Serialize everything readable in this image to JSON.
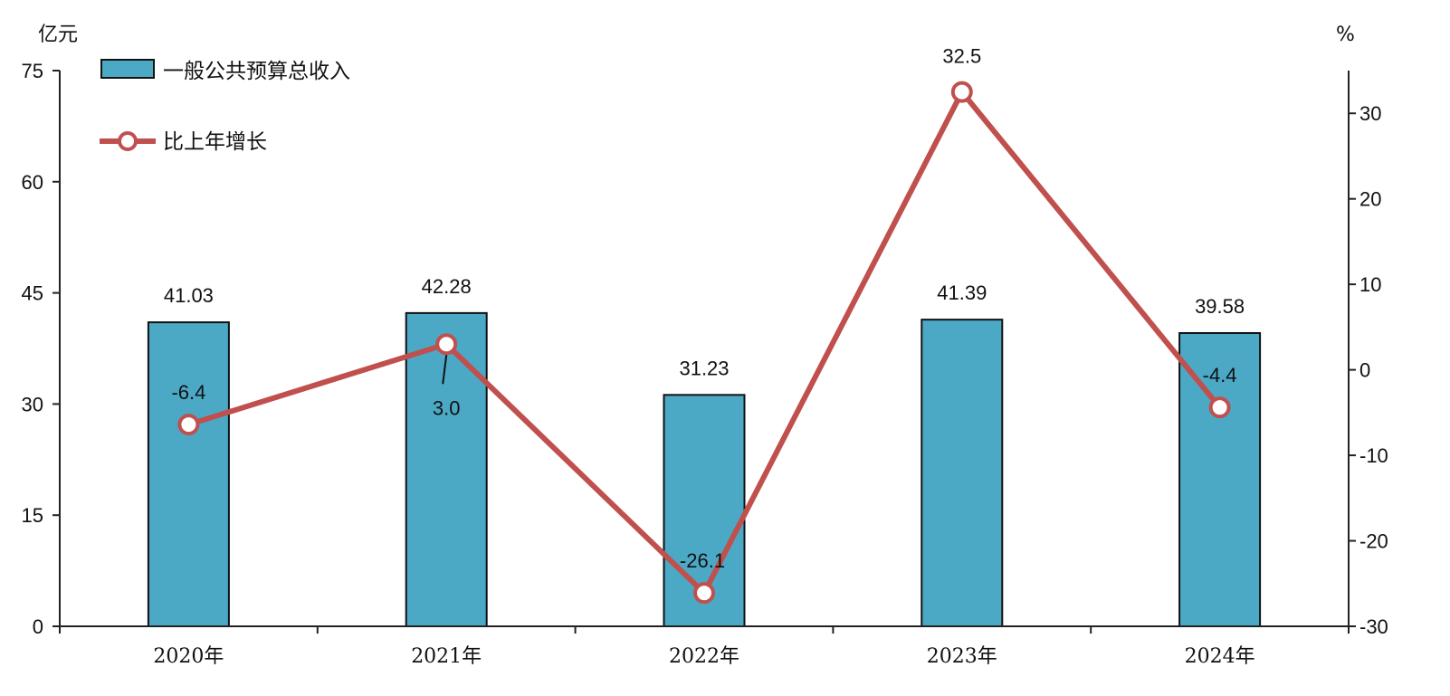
{
  "chart_data": {
    "type": "bar",
    "categories": [
      "2020年",
      "2021年",
      "2022年",
      "2023年",
      "2024年"
    ],
    "series": [
      {
        "name": "一般公共预算总收入",
        "type": "bar",
        "axis": "left",
        "color": "#4BA9C6",
        "values": [
          41.03,
          42.28,
          31.23,
          41.39,
          39.58
        ],
        "labels": [
          "41.03",
          "42.28",
          "31.23",
          "41.39",
          "39.58"
        ]
      },
      {
        "name": "比上年增长",
        "type": "line",
        "axis": "right",
        "color": "#C0504D",
        "values": [
          -6.4,
          3.0,
          -26.1,
          32.5,
          -4.4
        ],
        "labels": [
          "-6.4",
          "3.0",
          "-26.1",
          "32.5",
          "-4.4"
        ]
      }
    ],
    "left_axis": {
      "unit": "亿元",
      "ylim": [
        0,
        75
      ],
      "ticks": [
        "0",
        "15",
        "30",
        "45",
        "60",
        "75"
      ]
    },
    "right_axis": {
      "unit": "%",
      "ylim": [
        -30,
        35
      ],
      "ticks": [
        "-30",
        "-20",
        "-10",
        "0",
        "10",
        "20",
        "30"
      ]
    },
    "legend_position": "top-left",
    "grid": false
  }
}
